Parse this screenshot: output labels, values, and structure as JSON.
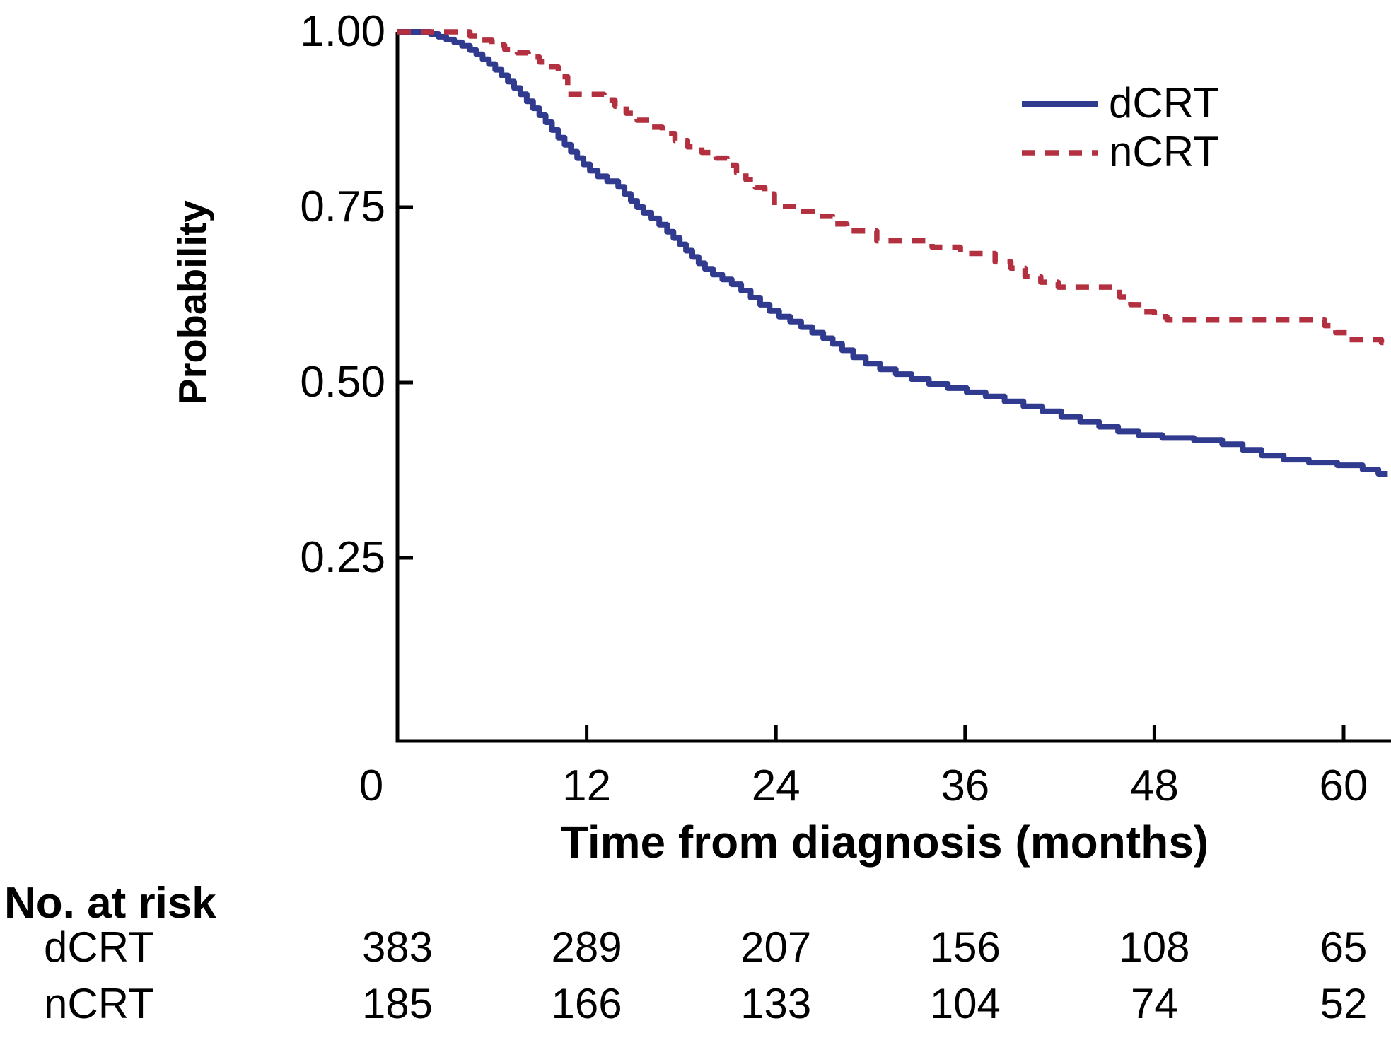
{
  "chart_data": {
    "type": "line",
    "subtype": "kaplan-meier-step",
    "title": "",
    "xlabel": "Time from diagnosis (months)",
    "ylabel": "Probability",
    "xlim": [
      0,
      62.8
    ],
    "ylim": [
      0,
      1.0
    ],
    "x_ticks": [
      0,
      12,
      24,
      36,
      48,
      60
    ],
    "x_tick_labels": [
      "0",
      "12",
      "24",
      "36",
      "48",
      "60"
    ],
    "y_ticks": [
      1.0,
      0.75,
      0.5,
      0.25
    ],
    "y_tick_labels": [
      "1.00",
      "0.75",
      "0.50",
      "0.25"
    ],
    "grid": false,
    "legend_position": "top-right",
    "axis_color": "#000000",
    "series": [
      {
        "name": "dCRT",
        "color": "#303a8e",
        "style": "solid",
        "end_month": 62.8,
        "points": [
          [
            0,
            1
          ],
          [
            2.1,
            0.997
          ],
          [
            2.6,
            0.993
          ],
          [
            3.1,
            0.989
          ],
          [
            3.6,
            0.985
          ],
          [
            4.1,
            0.98
          ],
          [
            4.6,
            0.974
          ],
          [
            5,
            0.968
          ],
          [
            5.4,
            0.961
          ],
          [
            5.8,
            0.954
          ],
          [
            6.2,
            0.946
          ],
          [
            6.6,
            0.938
          ],
          [
            7,
            0.929
          ],
          [
            7.4,
            0.92
          ],
          [
            7.8,
            0.911
          ],
          [
            8.2,
            0.901
          ],
          [
            8.6,
            0.891
          ],
          [
            9,
            0.881
          ],
          [
            9.4,
            0.871
          ],
          [
            9.8,
            0.86
          ],
          [
            10.2,
            0.849
          ],
          [
            10.6,
            0.839
          ],
          [
            11,
            0.829
          ],
          [
            11.4,
            0.82
          ],
          [
            11.8,
            0.811
          ],
          [
            12.2,
            0.802
          ],
          [
            12.7,
            0.794
          ],
          [
            13.3,
            0.787
          ],
          [
            14,
            0.779
          ],
          [
            14.4,
            0.769
          ],
          [
            14.8,
            0.759
          ],
          [
            15.2,
            0.75
          ],
          [
            15.6,
            0.742
          ],
          [
            16.1,
            0.734
          ],
          [
            16.6,
            0.725
          ],
          [
            17.1,
            0.715
          ],
          [
            17.5,
            0.706
          ],
          [
            17.9,
            0.697
          ],
          [
            18.3,
            0.688
          ],
          [
            18.7,
            0.679
          ],
          [
            19.1,
            0.67
          ],
          [
            19.5,
            0.662
          ],
          [
            20,
            0.654
          ],
          [
            20.6,
            0.647
          ],
          [
            21.2,
            0.64
          ],
          [
            21.8,
            0.631
          ],
          [
            22.4,
            0.621
          ],
          [
            23,
            0.611
          ],
          [
            23.6,
            0.602
          ],
          [
            24.2,
            0.594
          ],
          [
            24.9,
            0.587
          ],
          [
            25.6,
            0.579
          ],
          [
            26.3,
            0.571
          ],
          [
            27,
            0.563
          ],
          [
            27.6,
            0.555
          ],
          [
            28.2,
            0.546
          ],
          [
            28.9,
            0.536
          ],
          [
            29.7,
            0.527
          ],
          [
            30.6,
            0.519
          ],
          [
            31.6,
            0.512
          ],
          [
            32.6,
            0.505
          ],
          [
            33.7,
            0.498
          ],
          [
            34.9,
            0.492
          ],
          [
            36.1,
            0.486
          ],
          [
            37.3,
            0.48
          ],
          [
            38.5,
            0.473
          ],
          [
            39.7,
            0.466
          ],
          [
            40.9,
            0.459
          ],
          [
            42.1,
            0.451
          ],
          [
            43.3,
            0.444
          ],
          [
            44.5,
            0.437
          ],
          [
            45.7,
            0.43
          ],
          [
            47,
            0.425
          ],
          [
            48.5,
            0.421
          ],
          [
            50.5,
            0.418
          ],
          [
            52.3,
            0.412
          ],
          [
            53.6,
            0.404
          ],
          [
            54.8,
            0.396
          ],
          [
            56.2,
            0.39
          ],
          [
            57.8,
            0.386
          ],
          [
            59.6,
            0.382
          ],
          [
            61.2,
            0.376
          ],
          [
            62.2,
            0.37
          ]
        ]
      },
      {
        "name": "nCRT",
        "color": "#b2303f",
        "style": "dashed",
        "end_month": 62.6,
        "points": [
          [
            0,
            1
          ],
          [
            4.6,
            0.994
          ],
          [
            5.3,
            0.988
          ],
          [
            6,
            0.981
          ],
          [
            6.8,
            0.975
          ],
          [
            7.6,
            0.97
          ],
          [
            8.3,
            0.964
          ],
          [
            9,
            0.957
          ],
          [
            9.6,
            0.95
          ],
          [
            10.2,
            0.936
          ],
          [
            10.8,
            0.911
          ],
          [
            13.1,
            0.903
          ],
          [
            13.8,
            0.894
          ],
          [
            14.5,
            0.884
          ],
          [
            15.2,
            0.874
          ],
          [
            16,
            0.864
          ],
          [
            16.8,
            0.855
          ],
          [
            17.6,
            0.845
          ],
          [
            18.4,
            0.836
          ],
          [
            19.3,
            0.828
          ],
          [
            20.2,
            0.82
          ],
          [
            20.9,
            0.81
          ],
          [
            21.5,
            0.799
          ],
          [
            22.1,
            0.789
          ],
          [
            22.7,
            0.778
          ],
          [
            23.3,
            0.769
          ],
          [
            23.9,
            0.751
          ],
          [
            25.4,
            0.744
          ],
          [
            26.7,
            0.737
          ],
          [
            27.6,
            0.726
          ],
          [
            28.5,
            0.716
          ],
          [
            30.4,
            0.702
          ],
          [
            33.9,
            0.693
          ],
          [
            35.7,
            0.684
          ],
          [
            37.9,
            0.672
          ],
          [
            38.9,
            0.663
          ],
          [
            39.8,
            0.651
          ],
          [
            40.8,
            0.643
          ],
          [
            41.9,
            0.636
          ],
          [
            45.8,
            0.622
          ],
          [
            46.5,
            0.611
          ],
          [
            47.2,
            0.601
          ],
          [
            48,
            0.594
          ],
          [
            48.8,
            0.589
          ],
          [
            58.8,
            0.581
          ],
          [
            59.5,
            0.571
          ],
          [
            60.3,
            0.561
          ],
          [
            62.4,
            0.557
          ]
        ]
      }
    ],
    "risk_table": {
      "title": "No. at risk",
      "time_points": [
        0,
        12,
        24,
        36,
        48,
        60
      ],
      "rows": [
        {
          "label": "dCRT",
          "counts": [
            383,
            289,
            207,
            156,
            108,
            65
          ]
        },
        {
          "label": "nCRT",
          "counts": [
            185,
            166,
            133,
            104,
            74,
            52
          ]
        }
      ]
    }
  }
}
